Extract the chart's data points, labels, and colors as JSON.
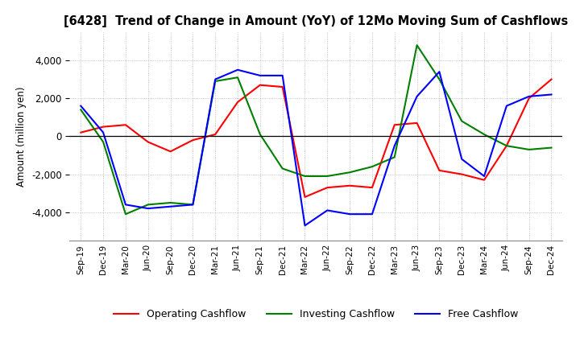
{
  "title": "[6428]  Trend of Change in Amount (YoY) of 12Mo Moving Sum of Cashflows",
  "ylabel": "Amount (million yen)",
  "x_labels": [
    "Sep-19",
    "Dec-19",
    "Mar-20",
    "Jun-20",
    "Sep-20",
    "Dec-20",
    "Mar-21",
    "Jun-21",
    "Sep-21",
    "Dec-21",
    "Mar-22",
    "Jun-22",
    "Sep-22",
    "Dec-22",
    "Mar-23",
    "Jun-23",
    "Sep-23",
    "Dec-23",
    "Mar-24",
    "Jun-24",
    "Sep-24",
    "Dec-24"
  ],
  "operating": [
    200,
    500,
    600,
    -300,
    -800,
    -200,
    100,
    1800,
    2700,
    2600,
    -3200,
    -2700,
    -2600,
    -2700,
    600,
    700,
    -1800,
    -2000,
    -2300,
    -500,
    2000,
    3000
  ],
  "investing": [
    1400,
    -300,
    -4100,
    -3600,
    -3500,
    -3600,
    2900,
    3100,
    100,
    -1700,
    -2100,
    -2100,
    -1900,
    -1600,
    -1100,
    4800,
    3000,
    800,
    100,
    -500,
    -700,
    -600
  ],
  "free": [
    1600,
    200,
    -3600,
    -3800,
    -3700,
    -3600,
    3000,
    3500,
    3200,
    3200,
    -4700,
    -3900,
    -4100,
    -4100,
    -500,
    2100,
    3400,
    -1200,
    -2100,
    1600,
    2100,
    2200
  ],
  "operating_color": "#ff0000",
  "investing_color": "#008000",
  "free_color": "#0000ff",
  "ylim": [
    -5500,
    5500
  ],
  "yticks": [
    -4000,
    -2000,
    0,
    2000,
    4000
  ],
  "background_color": "#ffffff",
  "grid_color": "#b0b0b0"
}
